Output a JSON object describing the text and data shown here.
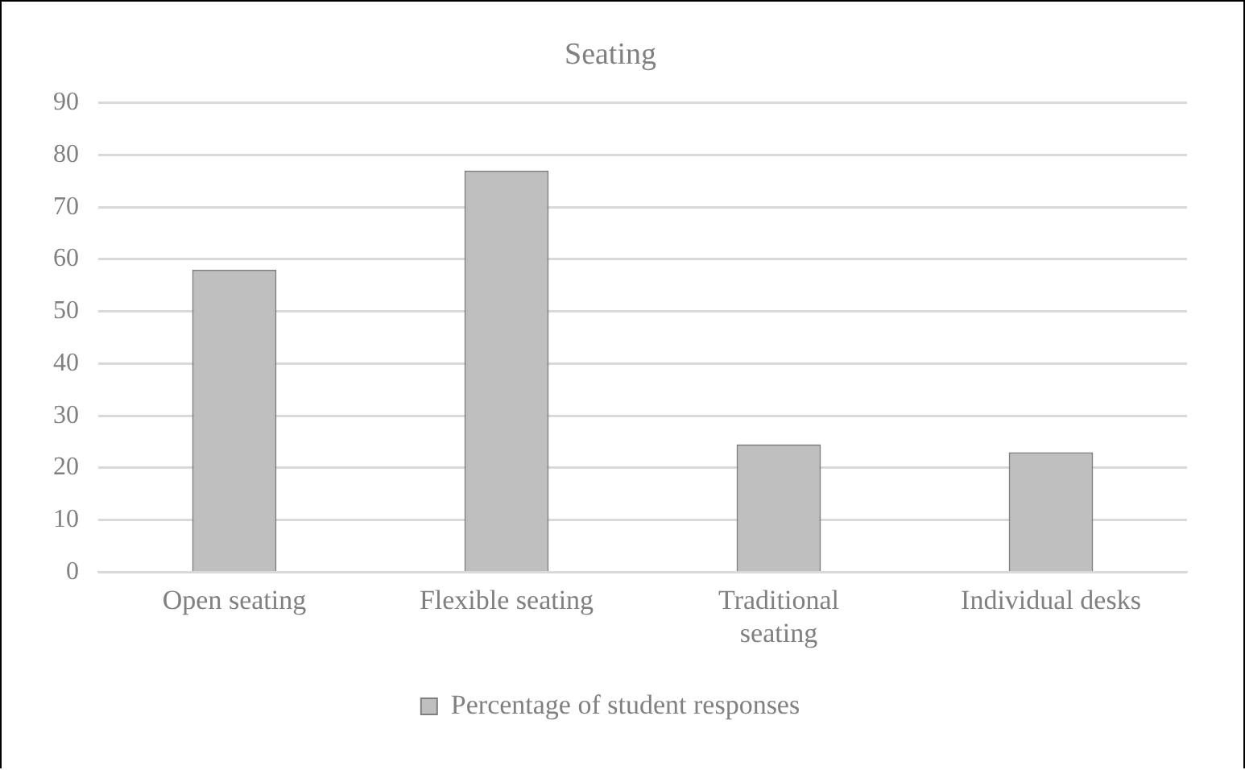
{
  "chart_data": {
    "type": "bar",
    "title": "Seating",
    "categories": [
      "Open seating",
      "Flexible seating",
      [
        "Traditional",
        "seating"
      ],
      "Individual desks"
    ],
    "series": [
      {
        "name": "Percentage of student responses",
        "color": "#bfbfbf",
        "values": [
          58,
          77,
          24.5,
          23
        ]
      }
    ],
    "ylim": [
      0,
      90
    ],
    "yticks": [
      0,
      10,
      20,
      30,
      40,
      50,
      60,
      70,
      80,
      90
    ],
    "grid": "y",
    "legend": "bottom"
  }
}
